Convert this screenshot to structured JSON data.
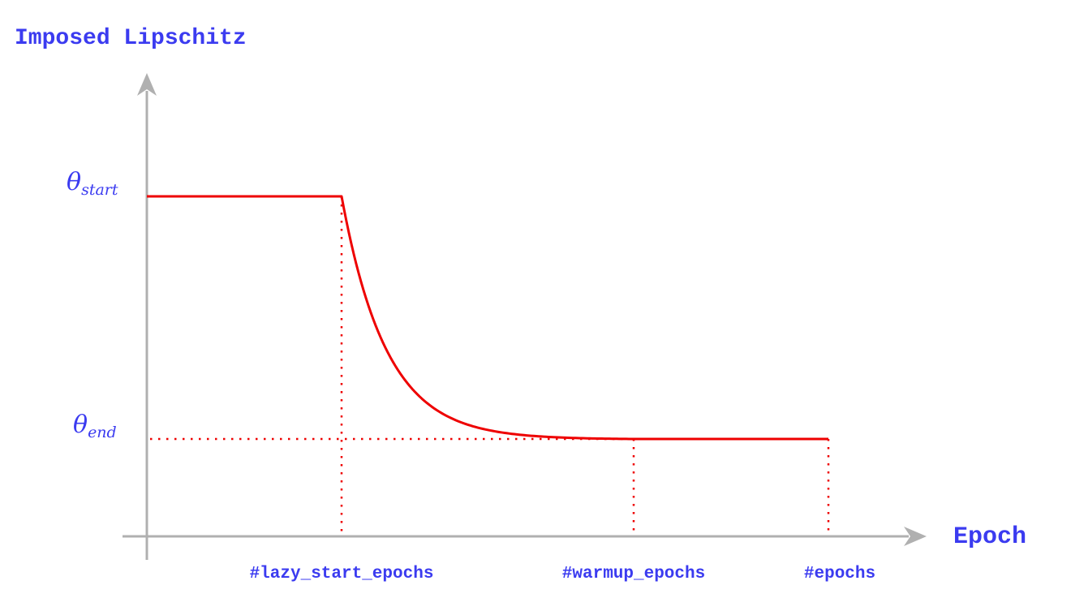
{
  "chart_data": {
    "type": "line",
    "title": "",
    "ylabel": "Imposed Lipschitz",
    "xlabel": "Epoch",
    "x_ticks": [
      "#lazy_start_epochs",
      "#warmup_epochs",
      "#epochs"
    ],
    "y_ticks": [
      {
        "base": "θ",
        "sub": "start"
      },
      {
        "base": "θ",
        "sub": "end"
      }
    ],
    "curve": {
      "phases": [
        "constant",
        "exponential-decay",
        "constant"
      ],
      "from_y": "start",
      "to_y": "end"
    },
    "grid": false,
    "legend": "none"
  },
  "colors": {
    "label": "#3b3bf0",
    "axis": "#b0b0b0",
    "curve": "#ee0000",
    "guide": "#ee0000"
  }
}
